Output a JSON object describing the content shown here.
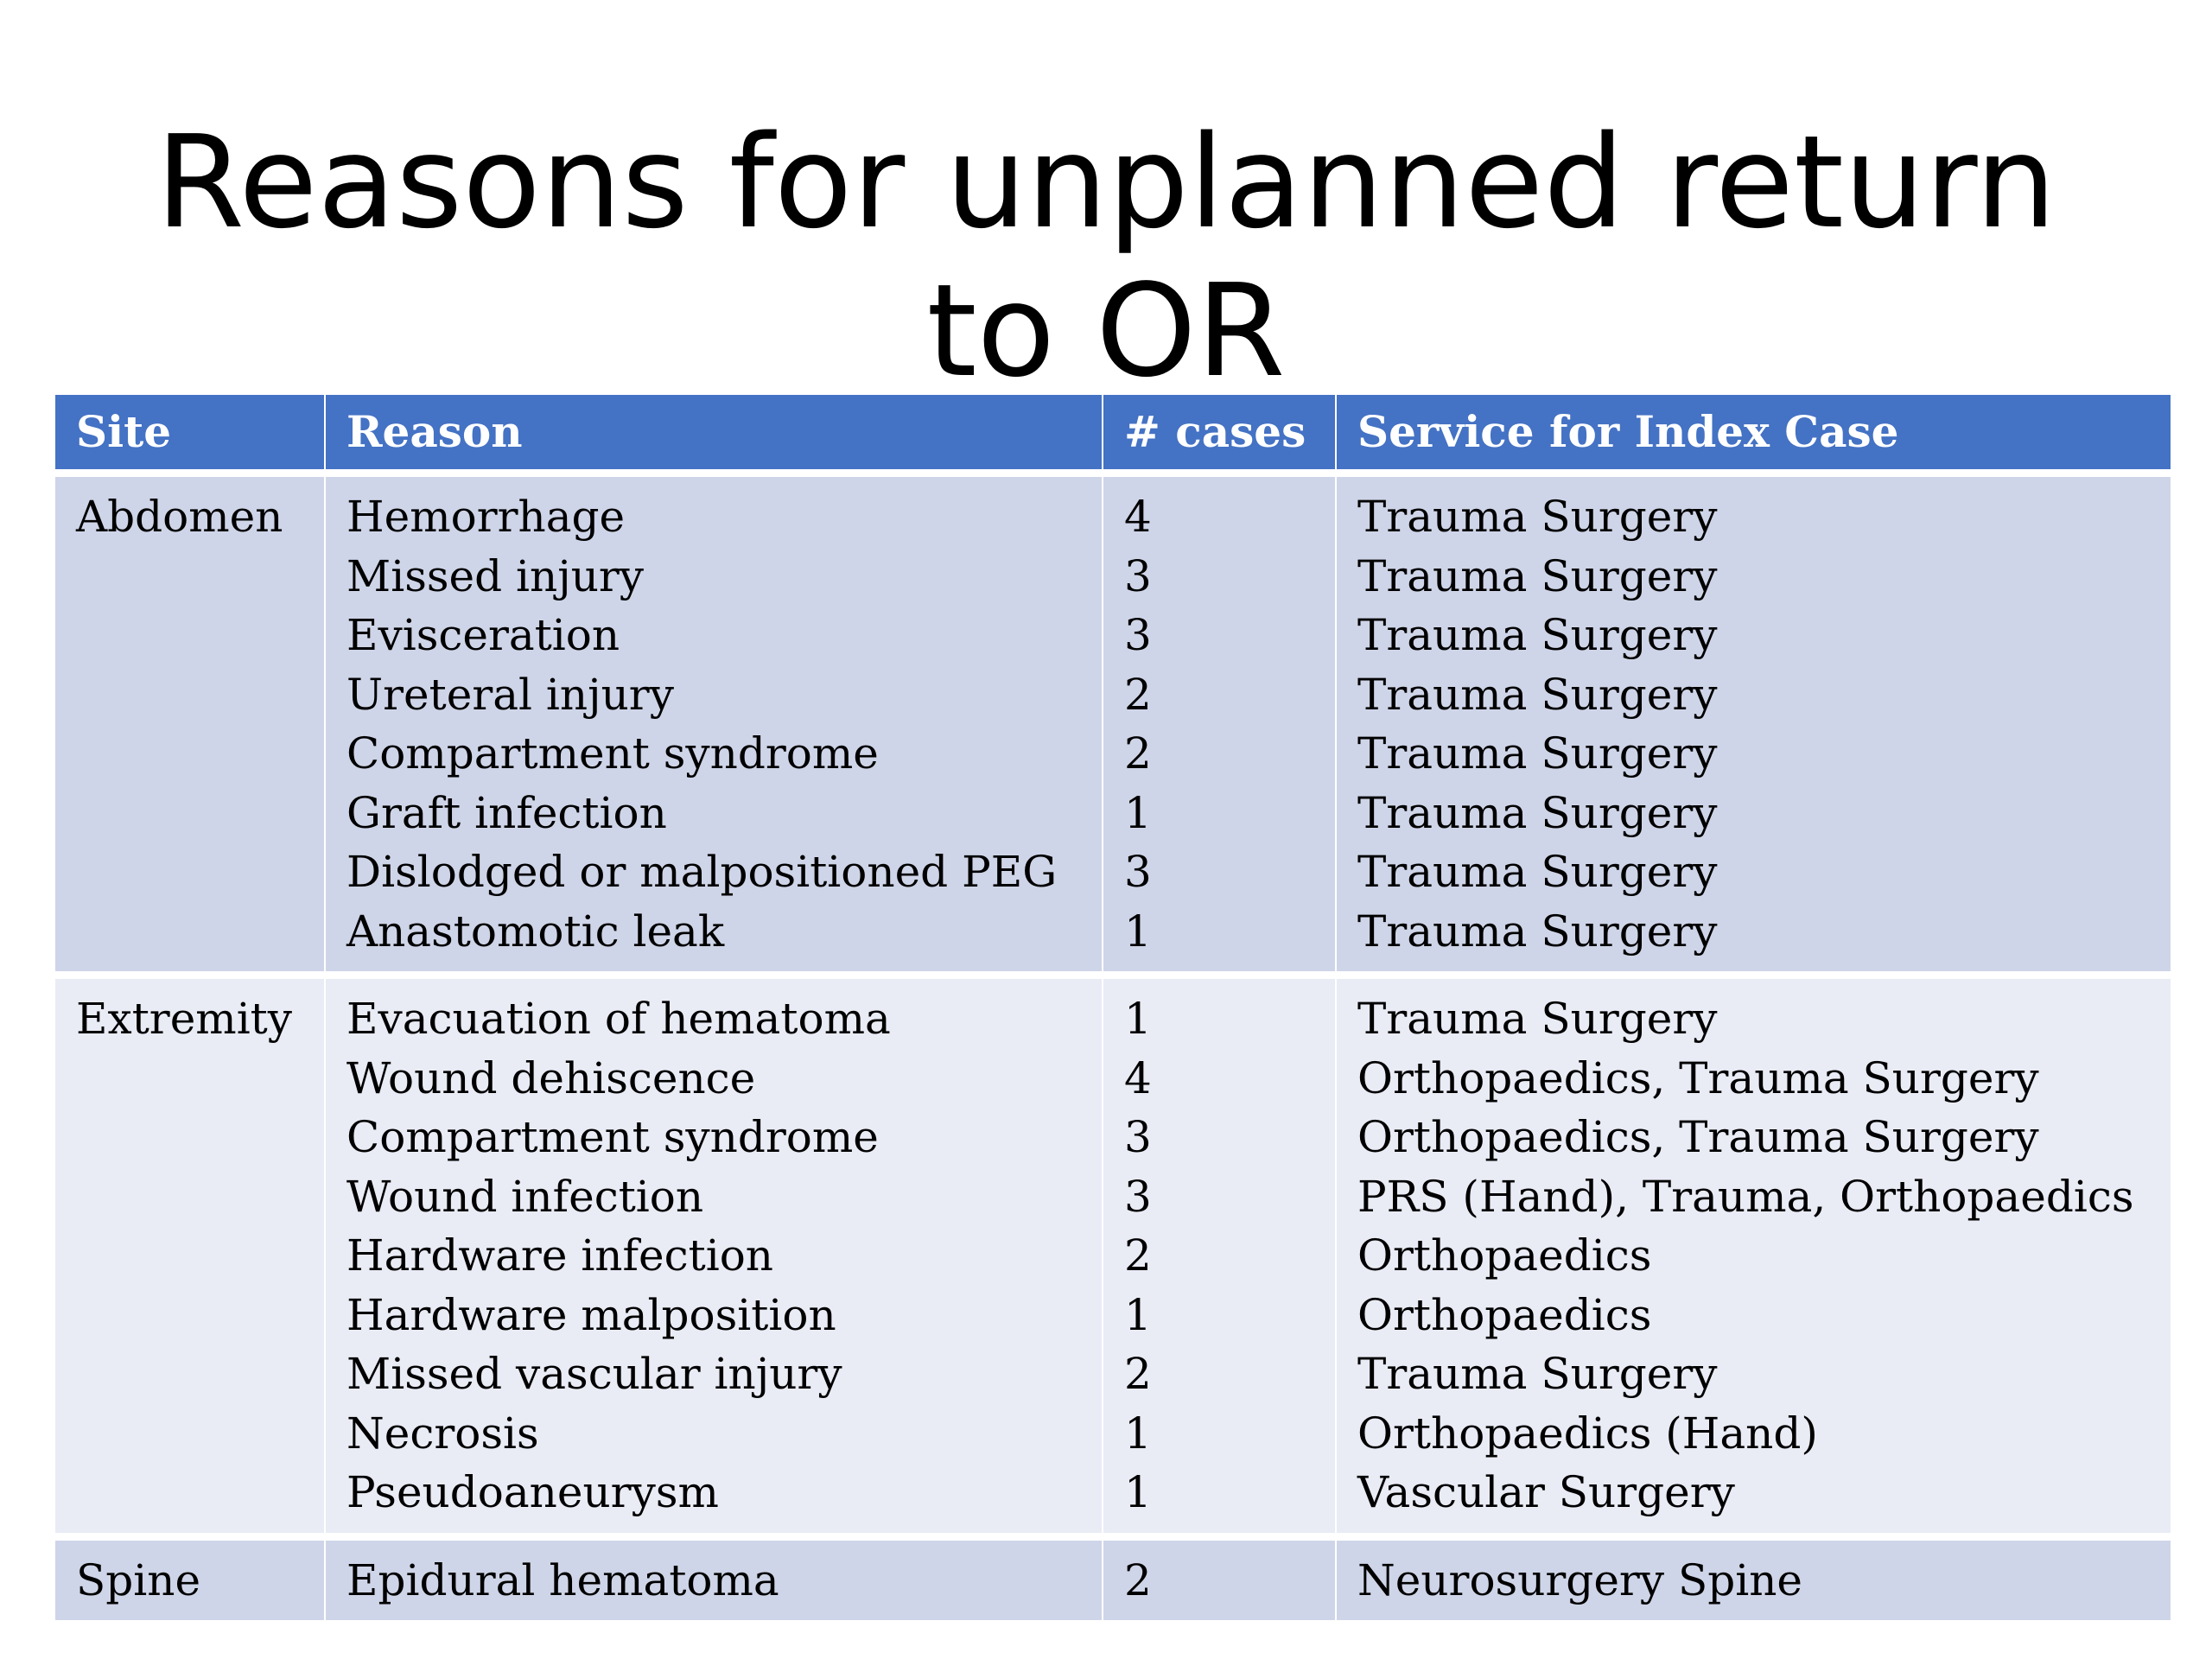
{
  "title": {
    "line1": "Reasons for unplanned return",
    "line2": "to OR"
  },
  "table": {
    "headers": {
      "site": "Site",
      "reason": "Reason",
      "cases": "# cases",
      "service": "Service for Index Case"
    },
    "groups": [
      {
        "site": "Abdomen",
        "rows": [
          {
            "reason": "Hemorrhage",
            "cases": "4",
            "service": "Trauma Surgery"
          },
          {
            "reason": "Missed injury",
            "cases": "3",
            "service": "Trauma Surgery"
          },
          {
            "reason": "Evisceration",
            "cases": "3",
            "service": "Trauma Surgery"
          },
          {
            "reason": "Ureteral injury",
            "cases": "2",
            "service": "Trauma Surgery"
          },
          {
            "reason": "Compartment syndrome",
            "cases": "2",
            "service": "Trauma Surgery"
          },
          {
            "reason": "Graft infection",
            "cases": "1",
            "service": "Trauma Surgery"
          },
          {
            "reason": "Dislodged or malpositioned PEG",
            "cases": "3",
            "service": "Trauma Surgery"
          },
          {
            "reason": "Anastomotic leak",
            "cases": "1",
            "service": "Trauma Surgery"
          }
        ]
      },
      {
        "site": "Extremity",
        "rows": [
          {
            "reason": "Evacuation of hematoma",
            "cases": "1",
            "service": "Trauma Surgery"
          },
          {
            "reason": "Wound dehiscence",
            "cases": "4",
            "service": "Orthopaedics, Trauma Surgery"
          },
          {
            "reason": "Compartment syndrome",
            "cases": "3",
            "service": "Orthopaedics, Trauma Surgery"
          },
          {
            "reason": "Wound infection",
            "cases": "3",
            "service": "PRS (Hand), Trauma, Orthopaedics"
          },
          {
            "reason": "Hardware infection",
            "cases": "2",
            "service": "Orthopaedics"
          },
          {
            "reason": "Hardware malposition",
            "cases": "1",
            "service": "Orthopaedics"
          },
          {
            "reason": "Missed vascular injury",
            "cases": "2",
            "service": "Trauma Surgery"
          },
          {
            "reason": "Necrosis",
            "cases": "1",
            "service": "Orthopaedics (Hand)"
          },
          {
            "reason": "Pseudoaneurysm",
            "cases": "1",
            "service": "Vascular Surgery"
          }
        ]
      },
      {
        "site": "Spine",
        "rows": [
          {
            "reason": "Epidural hematoma",
            "cases": "2",
            "service": "Neurosurgery Spine"
          }
        ]
      }
    ]
  }
}
